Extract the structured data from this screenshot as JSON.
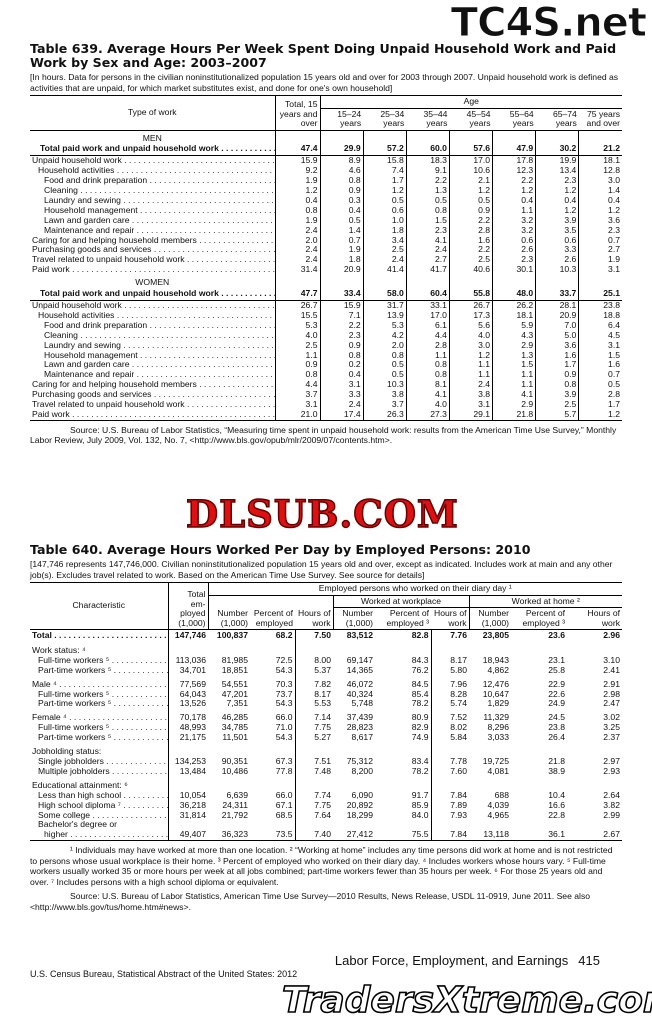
{
  "watermarks": {
    "top": "TC4S.net",
    "middle": "DLSUB.COM",
    "bottom": "TradersXtreme.com"
  },
  "table_639": {
    "title": "Table 639. Average Hours Per Week Spent Doing Unpaid Household Work and Paid Work by Sex and Age: 2003–2007",
    "note": "[In hours. Data for persons in the civilian noninstitutionalized population 15 years old and over for 2003 through 2007. Unpaid household work is defined as activities that are unpaid, for which market substitutes exist, and done for one's own household]",
    "header": {
      "type_of_work": "Type of work",
      "total": "Total, 15 years and over",
      "age": "Age",
      "ages": [
        "15–24 years",
        "25–34 years",
        "35–44 years",
        "45–54 years",
        "55–64 years",
        "65–74 years",
        "75 years and over"
      ]
    },
    "sections": [
      {
        "label": "MEN",
        "rows": [
          {
            "label": "Total paid work and unpaid household work",
            "values": [
              "47.4",
              "29.9",
              "57.2",
              "60.0",
              "57.6",
              "47.9",
              "30.2",
              "21.2"
            ]
          },
          {
            "label": "Unpaid household work",
            "values": [
              "15.9",
              "8.9",
              "15.8",
              "18.3",
              "17.0",
              "17.8",
              "19.9",
              "18.1"
            ],
            "children": [
              {
                "label": "Household activities",
                "values": [
                  "9.2",
                  "4.6",
                  "7.4",
                  "9.1",
                  "10.6",
                  "12.3",
                  "13.4",
                  "12.8"
                ],
                "children": [
                  {
                    "label": "Food and drink preparation",
                    "values": [
                      "1.9",
                      "0.8",
                      "1.7",
                      "2.2",
                      "2.1",
                      "2.2",
                      "2.3",
                      "3.0"
                    ]
                  },
                  {
                    "label": "Cleaning",
                    "values": [
                      "1.2",
                      "0.9",
                      "1.2",
                      "1.3",
                      "1.2",
                      "1.2",
                      "1.2",
                      "1.4"
                    ]
                  },
                  {
                    "label": "Laundry and sewing",
                    "values": [
                      "0.4",
                      "0.3",
                      "0.5",
                      "0.5",
                      "0.5",
                      "0.4",
                      "0.4",
                      "0.4"
                    ]
                  },
                  {
                    "label": "Household management",
                    "values": [
                      "0.8",
                      "0.4",
                      "0.6",
                      "0.8",
                      "0.9",
                      "1.1",
                      "1.2",
                      "1.2"
                    ]
                  },
                  {
                    "label": "Lawn and garden care",
                    "values": [
                      "1.9",
                      "0.5",
                      "1.0",
                      "1.5",
                      "2.2",
                      "3.2",
                      "3.9",
                      "3.6"
                    ]
                  },
                  {
                    "label": "Maintenance and repair",
                    "values": [
                      "2.4",
                      "1.4",
                      "1.8",
                      "2.3",
                      "2.8",
                      "3.2",
                      "3.5",
                      "2.3"
                    ]
                  }
                ]
              }
            ]
          },
          {
            "label": "Caring for and helping household members",
            "values": [
              "2.0",
              "0.7",
              "3.4",
              "4.1",
              "1.6",
              "0.6",
              "0.6",
              "0.7"
            ]
          },
          {
            "label": "Purchasing goods and services",
            "values": [
              "2.4",
              "1.9",
              "2.5",
              "2.4",
              "2.2",
              "2.6",
              "3.3",
              "2.7"
            ]
          },
          {
            "label": "Travel related to unpaid household work",
            "values": [
              "2.4",
              "1.8",
              "2.4",
              "2.7",
              "2.5",
              "2.3",
              "2.6",
              "1.9"
            ]
          },
          {
            "label": "Paid work",
            "values": [
              "31.4",
              "20.9",
              "41.4",
              "41.7",
              "40.6",
              "30.1",
              "10.3",
              "3.1"
            ]
          }
        ]
      },
      {
        "label": "WOMEN",
        "rows": [
          {
            "label": "Total paid work and unpaid household work",
            "values": [
              "47.7",
              "33.4",
              "58.0",
              "60.4",
              "55.8",
              "48.0",
              "33.7",
              "25.1"
            ]
          },
          {
            "label": "Unpaid household work",
            "values": [
              "26.7",
              "15.9",
              "31.7",
              "33.1",
              "26.7",
              "26.2",
              "28.1",
              "23.8"
            ],
            "children": [
              {
                "label": "Household activities",
                "values": [
                  "15.5",
                  "7.1",
                  "13.9",
                  "17.0",
                  "17.3",
                  "18.1",
                  "20.9",
                  "18.8"
                ],
                "children": [
                  {
                    "label": "Food and drink preparation",
                    "values": [
                      "5.3",
                      "2.2",
                      "5.3",
                      "6.1",
                      "5.6",
                      "5.9",
                      "7.0",
                      "6.4"
                    ]
                  },
                  {
                    "label": "Cleaning",
                    "values": [
                      "4.0",
                      "2.3",
                      "4.2",
                      "4.4",
                      "4.0",
                      "4.3",
                      "5.0",
                      "4.5"
                    ]
                  },
                  {
                    "label": "Laundry and sewing",
                    "values": [
                      "2.5",
                      "0.9",
                      "2.0",
                      "2.8",
                      "3.0",
                      "2.9",
                      "3.6",
                      "3.1"
                    ]
                  },
                  {
                    "label": "Household management",
                    "values": [
                      "1.1",
                      "0.8",
                      "0.8",
                      "1.1",
                      "1.2",
                      "1.3",
                      "1.6",
                      "1.5"
                    ]
                  },
                  {
                    "label": "Lawn and garden care",
                    "values": [
                      "0.9",
                      "0.2",
                      "0.5",
                      "0.8",
                      "1.1",
                      "1.5",
                      "1.7",
                      "1.6"
                    ]
                  },
                  {
                    "label": "Maintenance and repair",
                    "values": [
                      "0.8",
                      "0.4",
                      "0.5",
                      "0.8",
                      "1.1",
                      "1.1",
                      "0.9",
                      "0.7"
                    ]
                  }
                ]
              }
            ]
          },
          {
            "label": "Caring for and helping household members",
            "values": [
              "4.4",
              "3.1",
              "10.3",
              "8.1",
              "2.4",
              "1.1",
              "0.8",
              "0.5"
            ]
          },
          {
            "label": "Purchasing goods and services",
            "values": [
              "3.7",
              "3.3",
              "3.8",
              "4.1",
              "3.8",
              "4.1",
              "3.9",
              "2.8"
            ]
          },
          {
            "label": "Travel related to unpaid household work",
            "values": [
              "3.1",
              "2.4",
              "3.7",
              "4.0",
              "3.1",
              "2.9",
              "2.5",
              "1.7"
            ]
          },
          {
            "label": "Paid work",
            "values": [
              "21.0",
              "17.4",
              "26.3",
              "27.3",
              "29.1",
              "21.8",
              "5.7",
              "1.2"
            ]
          }
        ]
      }
    ],
    "source": "Source: U.S. Bureau of Labor Statistics, “Measuring time spent in unpaid household work: results from the American Time Use Survey,” Monthly Labor Review, July 2009, Vol. 132, No. 7, <http://www.bls.gov/opub/mlr/2009/07/contents.htm>."
  },
  "table_640": {
    "title": "Table 640. Average Hours Worked Per Day by Employed Persons: 2010",
    "note": "[147,746 represents 147,746,000. Civilian noninstitutionalized population 15 years old and over, except as indicated. Includes work at main and any other job(s). Excludes travel related to work. Based on the American Time Use Survey. See source for details]",
    "header": {
      "characteristic": "Characteristic",
      "total": "Total em- ployed (1,000)",
      "diary": "Employed persons who worked on their diary day ¹",
      "all_cols": [
        "Number (1,000)",
        "Percent of employed",
        "Hours of work"
      ],
      "workplace": "Worked at workplace",
      "workplace_cols": [
        "Number (1,000)",
        "Percent of employed ³",
        "Hours of work"
      ],
      "home": "Worked at home ²",
      "home_cols": [
        "Number (1,000)",
        "Percent of employed ³",
        "Hours of work"
      ]
    },
    "groups": [
      [
        {
          "label": "Total",
          "values": [
            "147,746",
            "100,837",
            "68.2",
            "7.50",
            "83,512",
            "82.8",
            "7.76",
            "23,805",
            "23.6",
            "2.96"
          ]
        }
      ],
      [
        {
          "label": "Work status: ⁴",
          "children": [
            {
              "label": "Full-time workers ⁵",
              "values": [
                "113,036",
                "81,985",
                "72.5",
                "8.00",
                "69,147",
                "84.3",
                "8.17",
                "18,943",
                "23.1",
                "3.10"
              ]
            },
            {
              "label": "Part-time workers ⁵",
              "values": [
                "34,701",
                "18,851",
                "54.3",
                "5.37",
                "14,365",
                "76.2",
                "5.80",
                "4,862",
                "25.8",
                "2.41"
              ]
            }
          ]
        }
      ],
      [
        {
          "label": "Male ⁴",
          "values": [
            "77,569",
            "54,551",
            "70.3",
            "7.82",
            "46,072",
            "84.5",
            "7.96",
            "12,476",
            "22.9",
            "2.91"
          ],
          "children": [
            {
              "label": "Full-time workers ⁵",
              "values": [
                "64,043",
                "47,201",
                "73.7",
                "8.17",
                "40,324",
                "85.4",
                "8.28",
                "10,647",
                "22.6",
                "2.98"
              ]
            },
            {
              "label": "Part-time workers ⁵",
              "values": [
                "13,526",
                "7,351",
                "54.3",
                "5.53",
                "5,748",
                "78.2",
                "5.74",
                "1,829",
                "24.9",
                "2.47"
              ]
            }
          ]
        }
      ],
      [
        {
          "label": "Female ⁴",
          "values": [
            "70,178",
            "46,285",
            "66.0",
            "7.14",
            "37,439",
            "80.9",
            "7.52",
            "11,329",
            "24.5",
            "3.02"
          ],
          "children": [
            {
              "label": "Full-time workers ⁵",
              "values": [
                "48,993",
                "34,785",
                "71.0",
                "7.75",
                "28,823",
                "82.9",
                "8.02",
                "8,296",
                "23.8",
                "3.25"
              ]
            },
            {
              "label": "Part-time workers ⁵",
              "values": [
                "21,175",
                "11,501",
                "54.3",
                "5.27",
                "8,617",
                "74.9",
                "5.84",
                "3,033",
                "26.4",
                "2.37"
              ]
            }
          ]
        }
      ],
      [
        {
          "label": "Jobholding status:",
          "children": [
            {
              "label": "Single jobholders",
              "values": [
                "134,253",
                "90,351",
                "67.3",
                "7.51",
                "75,312",
                "83.4",
                "7.78",
                "19,725",
                "21.8",
                "2.97"
              ]
            },
            {
              "label": "Multiple jobholders",
              "values": [
                "13,484",
                "10,486",
                "77.8",
                "7.48",
                "8,200",
                "78.2",
                "7.60",
                "4,081",
                "38.9",
                "2.93"
              ]
            }
          ]
        }
      ],
      [
        {
          "label": "Educational attainment: ⁶",
          "children": [
            {
              "label": "Less than high school",
              "values": [
                "10,054",
                "6,639",
                "66.0",
                "7.74",
                "6,090",
                "91.7",
                "7.84",
                "688",
                "10.4",
                "2.64"
              ]
            },
            {
              "label": "High school diploma ⁷",
              "values": [
                "36,218",
                "24,311",
                "67.1",
                "7.75",
                "20,892",
                "85.9",
                "7.89",
                "4,039",
                "16.6",
                "3.82"
              ]
            },
            {
              "label": "Some college",
              "values": [
                "31,814",
                "21,792",
                "68.5",
                "7.64",
                "18,299",
                "84.0",
                "7.93",
                "4,965",
                "22.8",
                "2.99"
              ]
            },
            {
              "label": "Bachelor's degree or",
              "children": [
                {
                  "label": "higher",
                  "values": [
                    "49,407",
                    "36,323",
                    "73.5",
                    "7.40",
                    "27,412",
                    "75.5",
                    "7.84",
                    "13,118",
                    "36.1",
                    "2.67"
                  ]
                }
              ]
            }
          ]
        }
      ]
    ],
    "footnotes": [
      "¹ Individuals may have worked at more than one location.",
      "² “Working at home” includes any time persons did work at home and is not restricted to persons whose usual workplace is their home.",
      "³ Percent of employed who worked on their diary day.",
      "⁴ Includes workers whose hours vary.",
      "⁵ Full-time workers usually worked 35 or more hours per week at all jobs combined; part-time workers fewer than 35 hours per week.",
      "⁶ For those 25 years old and over.",
      "⁷ Includes persons with a high school diploma or equivalent."
    ],
    "source": "Source: U.S. Bureau of Labor Statistics, American Time Use Survey—2010 Results, News Release, USDL 11-0919, June 2011. See also <http://www.bls.gov/tus/home.htm#news>."
  },
  "footer": {
    "section": "Labor Force, Employment, and Earnings",
    "page": "415",
    "publisher": "U.S. Census Bureau, Statistical Abstract of the United States: 2012"
  }
}
